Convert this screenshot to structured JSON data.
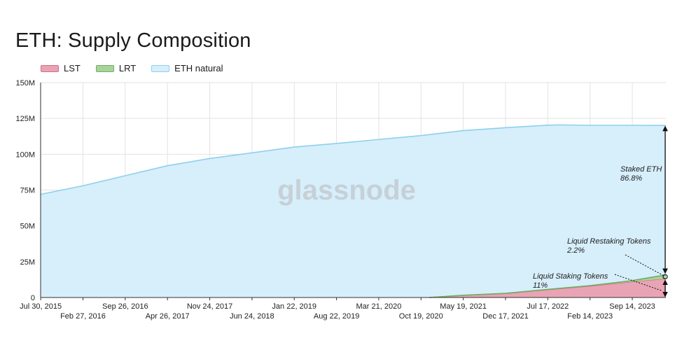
{
  "title": "ETH: Supply Composition",
  "legend": [
    {
      "label": "LST",
      "color": "#e8a4b5",
      "stroke": "#d46c86"
    },
    {
      "label": "LRT",
      "color": "#a8d49a",
      "stroke": "#6fae62"
    },
    {
      "label": "ETH natural",
      "color": "#d7eefb",
      "stroke": "#8ed0ec"
    }
  ],
  "watermark": "glassnode",
  "chart_data": {
    "type": "area",
    "title": "ETH: Supply Composition",
    "ylim": [
      0,
      150
    ],
    "yticks": [
      {
        "value": 0,
        "label": "0"
      },
      {
        "value": 25,
        "label": "25M"
      },
      {
        "value": 50,
        "label": "50M"
      },
      {
        "value": 75,
        "label": "75M"
      },
      {
        "value": 100,
        "label": "100M"
      },
      {
        "value": 125,
        "label": "125M"
      },
      {
        "value": 150,
        "label": "150M"
      }
    ],
    "xticks_upper": [
      "Jul 30, 2015",
      "Sep 26, 2016",
      "Nov 24, 2017",
      "Jan 22, 2019",
      "Mar 21, 2020",
      "May 19, 2021",
      "Jul 17, 2022",
      "Sep 14, 2023"
    ],
    "xticks_lower": [
      "Feb 27, 2016",
      "Apr 26, 2017",
      "Jun 24, 2018",
      "Aug 22, 2019",
      "Oct 19, 2020",
      "Dec 17, 2021",
      "Feb 14, 2023"
    ],
    "xrange": [
      "2015-07-30",
      "2024-03-01"
    ],
    "grid": true,
    "legend_position": "top-left",
    "series": [
      {
        "name": "ETH natural",
        "dates": [
          "2015-07-30",
          "2016-02-27",
          "2016-09-26",
          "2017-04-26",
          "2017-11-24",
          "2018-06-24",
          "2019-01-22",
          "2019-08-22",
          "2020-03-21",
          "2020-10-19",
          "2021-05-19",
          "2021-12-17",
          "2022-07-17",
          "2022-09-15",
          "2023-02-14",
          "2023-09-14",
          "2024-03-01"
        ],
        "values": [
          72,
          78,
          85,
          92,
          97,
          101,
          105,
          107.5,
          110.3,
          113,
          116.5,
          118.5,
          120.3,
          120.5,
          120.2,
          120.2,
          120.1
        ]
      },
      {
        "name": "LST",
        "dates": [
          "2020-12-01",
          "2021-05-19",
          "2021-12-17",
          "2022-07-17",
          "2023-02-14",
          "2023-09-14",
          "2024-03-01"
        ],
        "values": [
          0,
          1.5,
          2.8,
          5.5,
          8.0,
          11.0,
          13.2
        ]
      },
      {
        "name": "LRT",
        "dates": [
          "2020-12-01",
          "2021-05-19",
          "2021-12-17",
          "2022-07-17",
          "2023-02-14",
          "2023-09-14",
          "2024-03-01"
        ],
        "values": [
          0,
          0.05,
          0.1,
          0.15,
          0.3,
          0.8,
          2.6
        ]
      }
    ],
    "annotations": [
      {
        "text": "Staked ETH",
        "value_text": "86.8%"
      },
      {
        "text": "Liquid Restaking Tokens",
        "value_text": "2.2%"
      },
      {
        "text": "Liquid Staking Tokens",
        "value_text": "11%"
      }
    ]
  }
}
